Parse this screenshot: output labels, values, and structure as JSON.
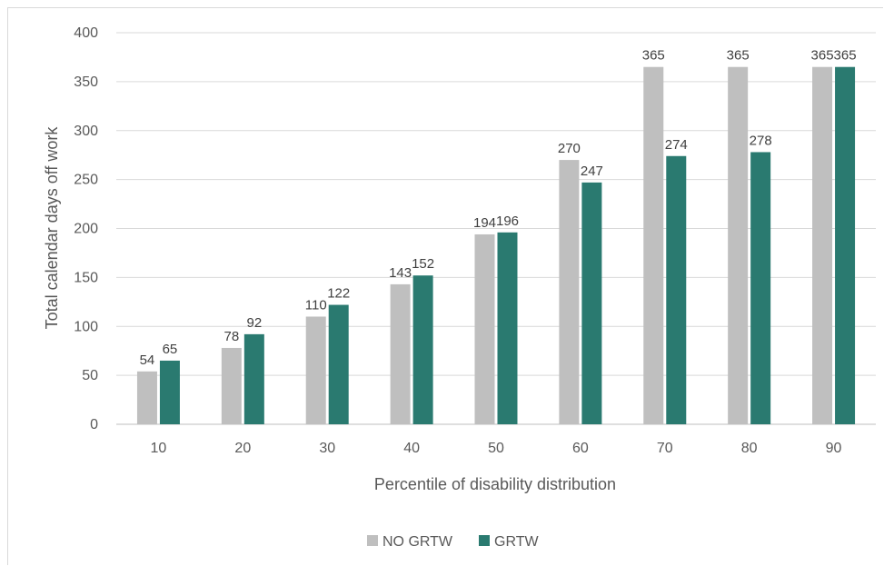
{
  "chart_data": {
    "type": "bar",
    "categories": [
      "10",
      "20",
      "30",
      "40",
      "50",
      "60",
      "70",
      "80",
      "90"
    ],
    "series": [
      {
        "name": "NO GRTW",
        "color": "#bfbfbf",
        "values": [
          54,
          78,
          110,
          143,
          194,
          270,
          365,
          365,
          365
        ]
      },
      {
        "name": "GRTW",
        "color": "#2a7a70",
        "values": [
          65,
          92,
          122,
          152,
          196,
          247,
          274,
          278,
          365
        ]
      }
    ],
    "xlabel": "Percentile of disability distribution",
    "ylabel": "Total calendar days off work",
    "ylim": [
      0,
      400
    ],
    "yticks": [
      0,
      50,
      100,
      150,
      200,
      250,
      300,
      350,
      400
    ],
    "grid": true,
    "legend": "bottom",
    "data_labels": true
  }
}
